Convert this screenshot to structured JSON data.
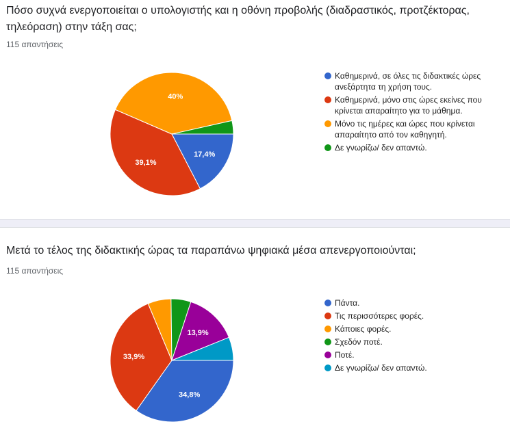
{
  "chart_data": [
    {
      "type": "pie",
      "title": "Πόσο συχνά ενεργοποιείται ο υπολογιστής και η οθόνη προβολής (διαδραστικός, προτζέκτορας, τηλεόραση) στην τάξη σας;",
      "subtitle": "115 απαντήσεις",
      "legend_position": "right",
      "slices": [
        {
          "label": "Καθημερινά, σε όλες τις διδακτικές ώρες ανεξάρτητα τη χρήση τους.",
          "value": 17.4,
          "display": "17,4%",
          "color": "#3366cc"
        },
        {
          "label": "Καθημερινά, μόνο στις ώρες εκείνες που κρίνεται απαραίτητο για το μάθημα.",
          "value": 39.1,
          "display": "39,1%",
          "color": "#dc3912"
        },
        {
          "label": "Μόνο τις ημέρες και ώρες που κρίνεται απαραίτητο από τον καθηγητή.",
          "value": 40.0,
          "display": "40%",
          "color": "#ff9900"
        },
        {
          "label": "Δε γνωρίζω/ δεν απαντώ.",
          "value": 3.5,
          "display": "",
          "color": "#109618"
        }
      ]
    },
    {
      "type": "pie",
      "title": "Μετά το τέλος της διδακτικής ώρας τα παραπάνω ψηφιακά μέσα απενεργοποιούνται;",
      "subtitle": "115 απαντήσεις",
      "legend_position": "right",
      "slices": [
        {
          "label": "Πάντα.",
          "value": 34.8,
          "display": "34,8%",
          "color": "#3366cc"
        },
        {
          "label": "Τις περισσότερες φορές.",
          "value": 33.9,
          "display": "33,9%",
          "color": "#dc3912"
        },
        {
          "label": "Κάποιες φορές.",
          "value": 6.1,
          "display": "",
          "color": "#ff9900"
        },
        {
          "label": "Σχεδόν ποτέ.",
          "value": 5.2,
          "display": "",
          "color": "#109618"
        },
        {
          "label": "Ποτέ.",
          "value": 13.9,
          "display": "13,9%",
          "color": "#990099"
        },
        {
          "label": "Δε γνωρίζω/ δεν απαντώ.",
          "value": 6.1,
          "display": "",
          "color": "#0099c6"
        }
      ]
    }
  ]
}
